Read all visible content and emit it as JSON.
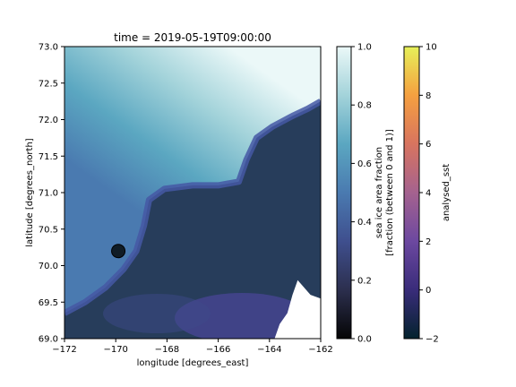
{
  "chart_data": {
    "type": "heatmap",
    "title": "time = 2019-05-19T09:00:00",
    "xlabel": "longitude [degrees_east]",
    "ylabel": "latitude [degrees_north]",
    "xlim": [
      -172,
      -162
    ],
    "ylim": [
      69.0,
      73.0
    ],
    "x_ticks": [
      -172,
      -170,
      -168,
      -166,
      -164,
      -162
    ],
    "x_tick_labels": [
      "−172",
      "−170",
      "−168",
      "−166",
      "−164",
      "−162"
    ],
    "y_ticks": [
      69.0,
      69.5,
      70.0,
      70.5,
      71.0,
      71.5,
      72.0,
      72.5,
      73.0
    ],
    "y_tick_labels": [
      "69.0",
      "69.5",
      "70.0",
      "70.5",
      "71.0",
      "71.5",
      "72.0",
      "72.5",
      "73.0"
    ],
    "marker": {
      "lon": -169.9,
      "lat": 70.2,
      "color": "#101c26"
    },
    "layers": [
      {
        "name": "sea ice area fraction",
        "colorbar_label": [
          "sea ice area fraction",
          "[fraction (between 0 and 1)]"
        ],
        "range": [
          0.0,
          1.0
        ],
        "ticks": [
          0.0,
          0.2,
          0.4,
          0.6,
          0.8,
          1.0
        ],
        "tick_labels": [
          "0.0",
          "0.2",
          "0.4",
          "0.6",
          "0.8",
          "1.0"
        ],
        "colormap": "ice",
        "colors": [
          "#050505",
          "#2c2f4e",
          "#3f4f8e",
          "#4a7ab0",
          "#5ba7c1",
          "#a3d3da",
          "#ebf8f8"
        ],
        "edge_contour": [
          [
            -172.0,
            69.35
          ],
          [
            -171.2,
            69.5
          ],
          [
            -170.4,
            69.7
          ],
          [
            -169.7,
            69.95
          ],
          [
            -169.2,
            70.2
          ],
          [
            -168.9,
            70.55
          ],
          [
            -168.7,
            70.9
          ],
          [
            -168.1,
            71.05
          ],
          [
            -167.0,
            71.1
          ],
          [
            -166.0,
            71.1
          ],
          [
            -165.2,
            71.15
          ],
          [
            -164.9,
            71.45
          ],
          [
            -164.5,
            71.75
          ],
          [
            -163.9,
            71.9
          ],
          [
            -163.1,
            72.05
          ],
          [
            -162.5,
            72.15
          ],
          [
            -162.0,
            72.25
          ]
        ]
      },
      {
        "name": "analysed_sst",
        "colorbar_label": [
          "analysed_sst"
        ],
        "range": [
          -2,
          10
        ],
        "ticks": [
          -2,
          0,
          2,
          4,
          6,
          8,
          10
        ],
        "tick_labels": [
          "−2",
          "0",
          "2",
          "4",
          "6",
          "8",
          "10"
        ],
        "colormap": "thermal",
        "colors": [
          "#04232e",
          "#392c7a",
          "#6c48a0",
          "#a5628f",
          "#d8745f",
          "#f5a040",
          "#e6f059"
        ],
        "land_contour": [
          [
            -162.0,
            69.55
          ],
          [
            -162.4,
            69.6
          ],
          [
            -162.9,
            69.8
          ],
          [
            -163.1,
            69.6
          ],
          [
            -163.3,
            69.35
          ],
          [
            -163.6,
            69.2
          ],
          [
            -163.8,
            69.0
          ],
          [
            -162.0,
            69.0
          ]
        ]
      }
    ]
  }
}
